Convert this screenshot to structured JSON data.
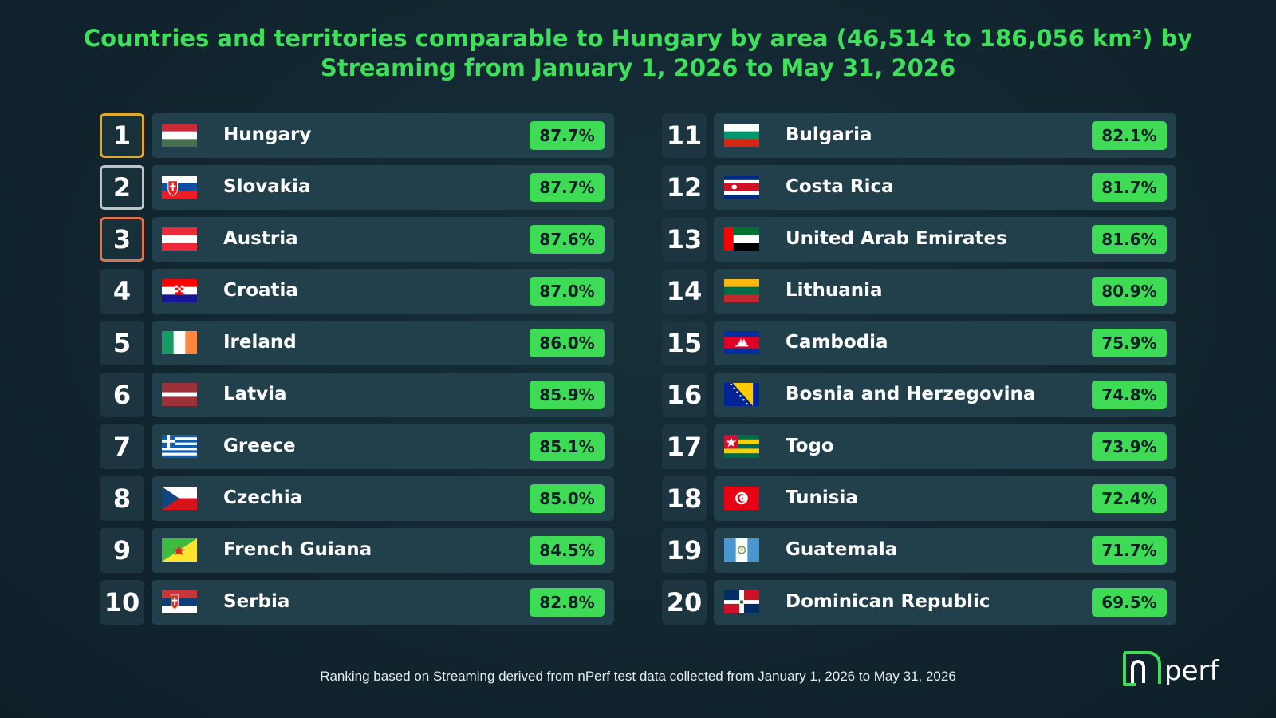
{
  "title": "Countries and territories comparable to Hungary by area (46,514 to 186,056 km²) by Streaming from January 1, 2026 to May 31, 2026",
  "footer": "Ranking based on Streaming derived from nPerf test data collected from January 1, 2026 to May 31, 2026",
  "logo_text": "nperf",
  "colors": {
    "accent": "#3ddc54",
    "gold": "#e3a82b",
    "silver": "#bcc4c8",
    "bronze": "#e0734f",
    "background": "#122630"
  },
  "chart_data": {
    "type": "table",
    "columns": [
      "rank",
      "flag",
      "country",
      "value"
    ],
    "rows": [
      {
        "rank": "1",
        "country": "Hungary",
        "value": "87.7%",
        "flag": "hungary-flag-icon"
      },
      {
        "rank": "2",
        "country": "Slovakia",
        "value": "87.7%",
        "flag": "slovakia-flag-icon"
      },
      {
        "rank": "3",
        "country": "Austria",
        "value": "87.6%",
        "flag": "austria-flag-icon"
      },
      {
        "rank": "4",
        "country": "Croatia",
        "value": "87.0%",
        "flag": "croatia-flag-icon"
      },
      {
        "rank": "5",
        "country": "Ireland",
        "value": "86.0%",
        "flag": "ireland-flag-icon"
      },
      {
        "rank": "6",
        "country": "Latvia",
        "value": "85.9%",
        "flag": "latvia-flag-icon"
      },
      {
        "rank": "7",
        "country": "Greece",
        "value": "85.1%",
        "flag": "greece-flag-icon"
      },
      {
        "rank": "8",
        "country": "Czechia",
        "value": "85.0%",
        "flag": "czechia-flag-icon"
      },
      {
        "rank": "9",
        "country": "French Guiana",
        "value": "84.5%",
        "flag": "french-guiana-flag-icon"
      },
      {
        "rank": "10",
        "country": "Serbia",
        "value": "82.8%",
        "flag": "serbia-flag-icon"
      },
      {
        "rank": "11",
        "country": "Bulgaria",
        "value": "82.1%",
        "flag": "bulgaria-flag-icon"
      },
      {
        "rank": "12",
        "country": "Costa Rica",
        "value": "81.7%",
        "flag": "costa-rica-flag-icon"
      },
      {
        "rank": "13",
        "country": "United Arab Emirates",
        "value": "81.6%",
        "flag": "uae-flag-icon"
      },
      {
        "rank": "14",
        "country": "Lithuania",
        "value": "80.9%",
        "flag": "lithuania-flag-icon"
      },
      {
        "rank": "15",
        "country": "Cambodia",
        "value": "75.9%",
        "flag": "cambodia-flag-icon"
      },
      {
        "rank": "16",
        "country": "Bosnia and Herzegovina",
        "value": "74.8%",
        "flag": "bosnia-flag-icon"
      },
      {
        "rank": "17",
        "country": "Togo",
        "value": "73.9%",
        "flag": "togo-flag-icon"
      },
      {
        "rank": "18",
        "country": "Tunisia",
        "value": "72.4%",
        "flag": "tunisia-flag-icon"
      },
      {
        "rank": "19",
        "country": "Guatemala",
        "value": "71.7%",
        "flag": "guatemala-flag-icon"
      },
      {
        "rank": "20",
        "country": "Dominican Republic",
        "value": "69.5%",
        "flag": "dominican-republic-flag-icon"
      }
    ]
  }
}
